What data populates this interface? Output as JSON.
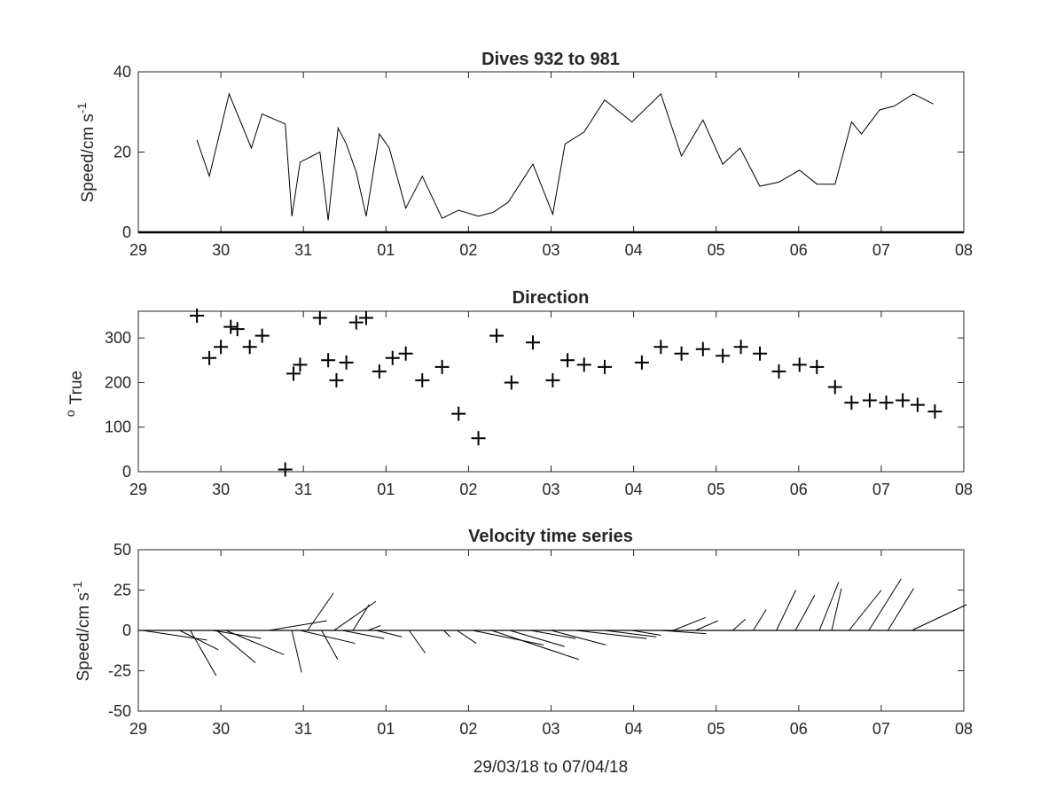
{
  "chart_data": [
    {
      "type": "line",
      "title": "Dives 932 to 981",
      "ylabel_main": "Speed/cm s",
      "ylabel_sup": "-1",
      "xlabel": "",
      "xlim": [
        29,
        39
      ],
      "ylim": [
        0,
        40
      ],
      "x_ticks": [
        29,
        30,
        31,
        32,
        33,
        34,
        35,
        36,
        37,
        38,
        39
      ],
      "x_tick_labels": [
        "29",
        "30",
        "31",
        "01",
        "02",
        "03",
        "04",
        "05",
        "06",
        "07",
        "08"
      ],
      "y_ticks": [
        0,
        20,
        40
      ],
      "y_tick_labels": [
        "0",
        "20",
        "40"
      ],
      "x": [
        29.71,
        29.86,
        30.1,
        30.27,
        30.37,
        30.5,
        30.78,
        30.86,
        30.96,
        31.2,
        31.3,
        31.42,
        31.52,
        31.64,
        31.76,
        31.92,
        32.04,
        32.24,
        32.44,
        32.68,
        32.88,
        33.12,
        33.3,
        33.48,
        33.78,
        34.02,
        34.17,
        34.4,
        34.65,
        34.98,
        35.33,
        35.58,
        35.84,
        36.08,
        36.29,
        36.53,
        36.76,
        37.01,
        37.22,
        37.44,
        37.64,
        37.76,
        37.98,
        38.16,
        38.39,
        38.63
      ],
      "y": [
        23,
        14,
        34.5,
        26,
        21,
        29.5,
        27,
        4,
        17.5,
        20,
        3,
        26,
        22,
        15,
        4,
        24.5,
        21,
        6,
        14,
        3.5,
        5.5,
        4,
        5,
        7.5,
        17,
        4.5,
        22,
        25,
        33,
        27.5,
        34.5,
        19,
        28,
        17,
        21,
        11.5,
        12.5,
        15.5,
        12,
        12,
        27.5,
        24.5,
        30.5,
        31.5,
        34.5,
        32
      ]
    },
    {
      "type": "scatter",
      "title": "Direction",
      "ylabel_main": "True",
      "ylabel_sup": "o",
      "xlabel": "",
      "marker": "+",
      "xlim": [
        29,
        39
      ],
      "ylim": [
        0,
        360
      ],
      "x_ticks": [
        29,
        30,
        31,
        32,
        33,
        34,
        35,
        36,
        37,
        38,
        39
      ],
      "x_tick_labels": [
        "29",
        "30",
        "31",
        "01",
        "02",
        "03",
        "04",
        "05",
        "06",
        "07",
        "08"
      ],
      "y_ticks": [
        0,
        100,
        200,
        300
      ],
      "y_tick_labels": [
        "0",
        "100",
        "200",
        "300"
      ],
      "x": [
        29.71,
        29.86,
        30.0,
        30.12,
        30.2,
        30.35,
        30.5,
        30.78,
        30.88,
        30.96,
        31.2,
        31.3,
        31.4,
        31.52,
        31.64,
        31.76,
        31.92,
        32.08,
        32.24,
        32.44,
        32.68,
        32.88,
        33.12,
        33.34,
        33.52,
        33.78,
        34.02,
        34.2,
        34.4,
        34.65,
        35.1,
        35.33,
        35.58,
        35.84,
        36.08,
        36.3,
        36.53,
        36.76,
        37.01,
        37.22,
        37.44,
        37.64,
        37.86,
        38.06,
        38.26,
        38.44,
        38.65
      ],
      "y": [
        350,
        255,
        280,
        325,
        320,
        280,
        305,
        5,
        220,
        240,
        345,
        250,
        205,
        245,
        335,
        345,
        225,
        255,
        265,
        205,
        235,
        130,
        75,
        305,
        200,
        290,
        205,
        250,
        240,
        235,
        245,
        280,
        265,
        275,
        260,
        280,
        265,
        225,
        240,
        235,
        190,
        155,
        160,
        155,
        160,
        150,
        135
      ]
    },
    {
      "type": "quiver",
      "title": "Velocity time series",
      "ylabel_main": "Speed/cm s",
      "ylabel_sup": "-1",
      "xlabel": "29/03/18 to 07/04/18",
      "xlim": [
        29,
        39
      ],
      "ylim": [
        -50,
        50
      ],
      "x_ticks": [
        29,
        30,
        31,
        32,
        33,
        34,
        35,
        36,
        37,
        38,
        39
      ],
      "x_tick_labels": [
        "29",
        "30",
        "31",
        "01",
        "02",
        "03",
        "04",
        "05",
        "06",
        "07",
        "08"
      ],
      "y_ticks": [
        -50,
        -25,
        0,
        25,
        50
      ],
      "y_tick_labels": [
        "-50",
        "-25",
        "0",
        "25",
        "50"
      ],
      "baseline": 0,
      "x": [
        29.05,
        29.5,
        29.63,
        29.9,
        29.95,
        30.06,
        30.45,
        30.58,
        30.86,
        30.96,
        31.05,
        31.22,
        31.37,
        31.47,
        31.6,
        31.78,
        31.88,
        32.28,
        32.7,
        32.86,
        33.05,
        33.28,
        33.5,
        33.75,
        34.0,
        34.3,
        34.65,
        34.98,
        35.33,
        35.48,
        35.75,
        36.2,
        36.45,
        36.73,
        36.96,
        37.25,
        37.4,
        37.61,
        37.85,
        38.08,
        38.37
      ],
      "u": [
        40,
        24,
        16,
        30,
        24,
        36,
        6,
        36,
        6,
        34,
        16,
        10,
        26,
        26,
        10,
        8,
        16,
        10,
        4,
        12,
        44,
        54,
        34,
        28,
        34,
        44,
        32,
        18,
        28,
        20,
        14,
        8,
        8,
        12,
        12,
        12,
        6,
        20,
        20,
        16,
        34
      ],
      "v": [
        -6,
        -12,
        -28,
        -5,
        -20,
        -15,
        0,
        6,
        -26,
        -8,
        23,
        -18,
        18,
        -5,
        16,
        3,
        -4,
        -14,
        -4,
        -8,
        -9,
        -18,
        -10,
        -5,
        -9,
        -5,
        -4,
        -3,
        -2,
        8,
        6,
        7,
        13,
        25,
        22,
        30,
        26,
        25,
        32,
        26,
        16
      ]
    }
  ]
}
